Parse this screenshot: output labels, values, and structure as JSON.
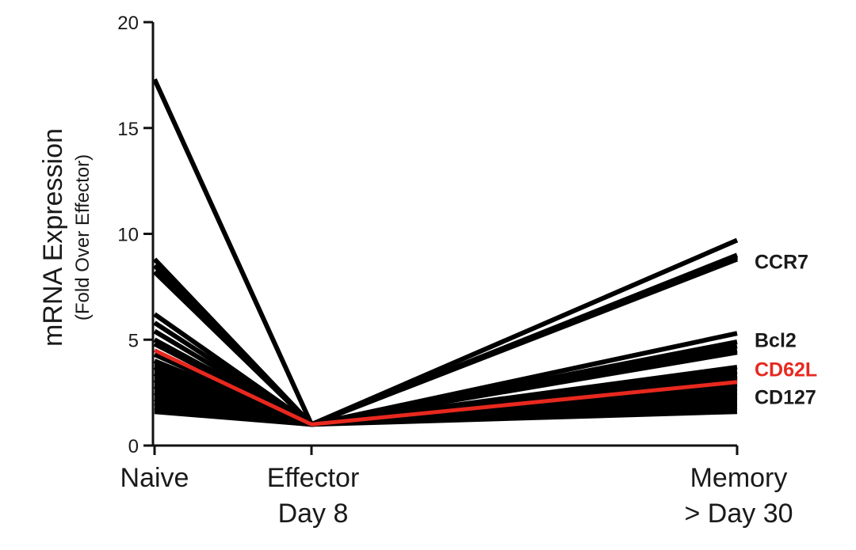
{
  "chart_data": {
    "type": "line",
    "categories": [
      "Naive",
      "Effector\nDay 8",
      "Memory\n> Day 30"
    ],
    "ylabel": "mRNA Expression",
    "ylabel_sub": "(Fold Over Effector)",
    "ylim": [
      0,
      20
    ],
    "yticks": [
      0,
      5,
      10,
      15,
      20
    ],
    "ytick_labels": [
      "0",
      "5",
      "10",
      "15",
      "20"
    ],
    "grid": false,
    "labels": [
      {
        "text": "CCR7",
        "y": 8.7,
        "color": "#1a1a1a"
      },
      {
        "text": "Bcl2",
        "y": 5.0,
        "color": "#1a1a1a"
      },
      {
        "text": "CD62L",
        "y": 3.6,
        "color": "#e8281e"
      },
      {
        "text": "CD127",
        "y": 2.3,
        "color": "#1a1a1a"
      }
    ],
    "highlight": {
      "name": "CD62L",
      "color": "#e8281e",
      "values": [
        4.5,
        1.0,
        3.0
      ]
    },
    "series_color": "#000000",
    "series": [
      {
        "values": [
          17.3,
          1.0,
          9.7
        ]
      },
      {
        "values": [
          8.8,
          1.0,
          9.0
        ]
      },
      {
        "values": [
          8.5,
          1.0,
          8.9
        ]
      },
      {
        "values": [
          8.2,
          1.0,
          8.8
        ]
      },
      {
        "values": [
          6.2,
          1.0,
          5.3
        ]
      },
      {
        "values": [
          5.8,
          1.0,
          4.9
        ]
      },
      {
        "values": [
          5.4,
          1.0,
          4.7
        ]
      },
      {
        "values": [
          5.0,
          1.0,
          4.5
        ]
      },
      {
        "values": [
          4.8,
          1.0,
          4.4
        ]
      },
      {
        "values": [
          4.3,
          1.0,
          3.7
        ]
      },
      {
        "values": [
          4.0,
          1.0,
          3.5
        ]
      },
      {
        "values": [
          3.7,
          1.0,
          3.3
        ]
      },
      {
        "values": [
          3.4,
          1.0,
          3.2
        ]
      },
      {
        "values": [
          3.1,
          1.0,
          3.1
        ]
      },
      {
        "values": [
          2.8,
          1.0,
          2.9
        ]
      },
      {
        "values": [
          2.5,
          1.0,
          2.7
        ]
      },
      {
        "values": [
          2.2,
          1.0,
          2.5
        ]
      },
      {
        "values": [
          2.0,
          1.0,
          2.3
        ]
      },
      {
        "values": [
          1.8,
          1.0,
          2.0
        ]
      },
      {
        "values": [
          1.7,
          1.0,
          1.8
        ]
      },
      {
        "values": [
          1.6,
          1.0,
          1.6
        ]
      }
    ]
  }
}
